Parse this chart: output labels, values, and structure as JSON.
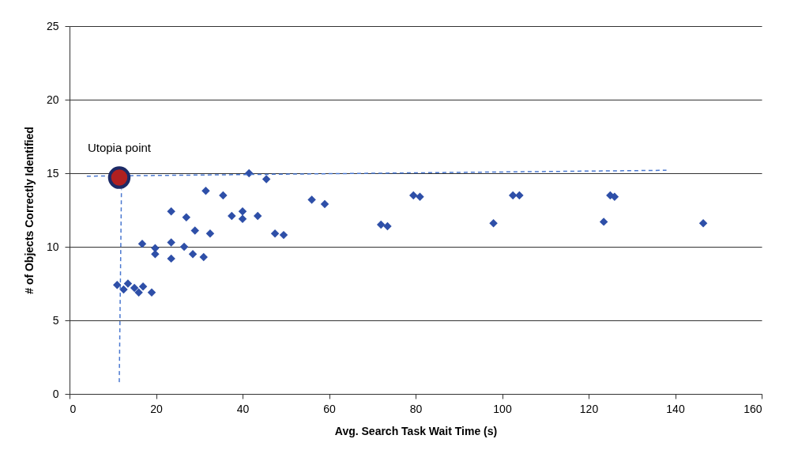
{
  "chart_data": {
    "type": "scatter",
    "xlabel": "Avg. Search Task Wait Time (s)",
    "ylabel": "# of Objects Correctly Identified",
    "xlim": [
      0,
      160
    ],
    "xticks": [
      0,
      20,
      40,
      60,
      80,
      100,
      120,
      140,
      160
    ],
    "ylim": [
      0,
      25
    ],
    "yticks": [
      0,
      5,
      10,
      15,
      20,
      25
    ],
    "grid": "y",
    "annotations": [
      {
        "text": "Utopia point",
        "x": 11.5,
        "y": 14.7
      }
    ],
    "series": [
      {
        "marker": "diamond",
        "color": "#2e4fa8",
        "x": [
          11,
          12.5,
          13.5,
          15,
          16,
          17,
          19,
          16.8,
          19.8,
          19.8,
          23.5,
          23.5,
          23.5,
          26.5,
          27,
          28.5,
          29,
          31,
          31.5,
          32.5,
          35.5,
          37.5,
          40,
          40,
          41.5,
          43.5,
          45.5,
          47.5,
          49.5,
          56,
          59,
          72,
          73.5,
          79.5,
          81,
          98,
          102.5,
          104,
          123.5,
          125,
          126,
          146.5
        ],
        "values": [
          7.4,
          7.1,
          7.5,
          7.2,
          6.9,
          7.3,
          6.9,
          10.2,
          9.9,
          9.5,
          12.4,
          10.3,
          9.2,
          10,
          12,
          9.5,
          11.1,
          9.3,
          13.8,
          10.9,
          13.5,
          12.1,
          12.4,
          11.9,
          15,
          12.1,
          14.6,
          10.9,
          10.8,
          13.2,
          12.9,
          11.5,
          11.4,
          13.5,
          13.4,
          11.6,
          13.5,
          13.5,
          11.7,
          13.5,
          13.4,
          11.6
        ]
      },
      {
        "type": "line",
        "line_style": "dashed",
        "color": "#4a78d0",
        "x": [
          4,
          138
        ],
        "values": [
          14.8,
          15.2
        ]
      },
      {
        "type": "line",
        "line_style": "dashed",
        "color": "#4a78d0",
        "x": [
          11.5,
          12
        ],
        "values": [
          0.8,
          13.9
        ]
      },
      {
        "marker": "circle",
        "color": "#b02020",
        "x": [
          11.5
        ],
        "values": [
          14.7
        ]
      }
    ]
  }
}
